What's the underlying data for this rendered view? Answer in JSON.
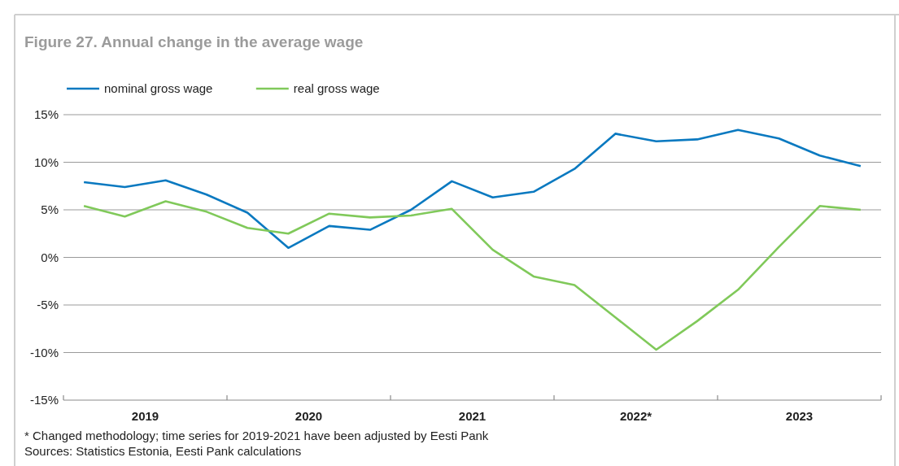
{
  "chart_data": {
    "type": "line",
    "title": "Figure 27. Annual change in the average wage",
    "x": [
      2019.125,
      2019.375,
      2019.625,
      2019.875,
      2020.125,
      2020.375,
      2020.625,
      2020.875,
      2021.125,
      2021.375,
      2021.625,
      2021.875,
      2022.125,
      2022.375,
      2022.625,
      2022.875,
      2023.125,
      2023.375,
      2023.625,
      2023.875
    ],
    "xlim": [
      2019,
      2024
    ],
    "xticks": [
      {
        "value": 2019,
        "label": null
      },
      {
        "value": 2019.5,
        "label": "2019"
      },
      {
        "value": 2020,
        "label": null
      },
      {
        "value": 2020.5,
        "label": "2020"
      },
      {
        "value": 2021,
        "label": null
      },
      {
        "value": 2021.5,
        "label": "2021"
      },
      {
        "value": 2022,
        "label": null
      },
      {
        "value": 2022.5,
        "label": "2022*"
      },
      {
        "value": 2023,
        "label": null
      },
      {
        "value": 2023.5,
        "label": "2023"
      },
      {
        "value": 2024,
        "label": null
      }
    ],
    "ylim": [
      -15,
      15
    ],
    "yticks": [
      {
        "value": -15,
        "label": "-15%"
      },
      {
        "value": -10,
        "label": "-10%"
      },
      {
        "value": -5,
        "label": "-5%"
      },
      {
        "value": 0,
        "label": "0%"
      },
      {
        "value": 5,
        "label": "5%"
      },
      {
        "value": 10,
        "label": "10%"
      },
      {
        "value": 15,
        "label": "15%"
      }
    ],
    "grid": "y",
    "legend": "top left",
    "marker": "none",
    "line_style": "solid",
    "series": [
      {
        "name": "nominal gross wage",
        "color": "#0a79c0",
        "values": [
          7.9,
          7.4,
          8.1,
          6.6,
          4.7,
          1.0,
          3.3,
          2.9,
          5.0,
          8.0,
          6.3,
          6.9,
          9.3,
          13.0,
          12.2,
          12.4,
          13.4,
          12.5,
          10.7,
          9.6
        ]
      },
      {
        "name": "real gross wage",
        "color": "#80c95a",
        "values": [
          5.4,
          4.3,
          5.9,
          4.8,
          3.1,
          2.5,
          4.6,
          4.2,
          4.4,
          5.1,
          0.8,
          -2.0,
          -2.9,
          -6.3,
          -9.7,
          -6.7,
          -3.4,
          1.1,
          5.4,
          5.0
        ]
      }
    ],
    "annotations": [
      "* Changed methodology; time series for 2019-2021 have been adjusted by Eesti Pank",
      "Sources: Statistics Estonia, Eesti Pank calculations"
    ]
  }
}
